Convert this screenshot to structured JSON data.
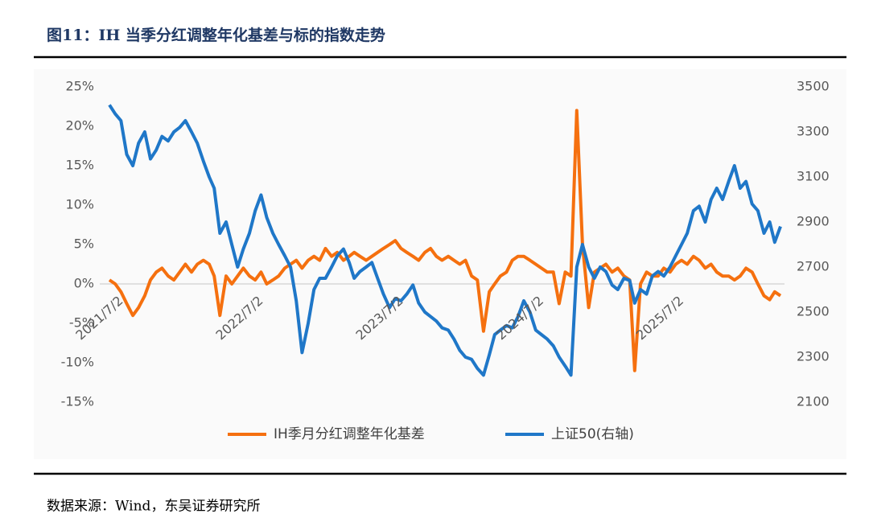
{
  "chart_data": {
    "type": "line",
    "title": "图11：IH 当季分红调整年化基差与标的指数走势",
    "source": "数据来源：Wind，东吴证券研究所",
    "x": [
      "2021/6/1",
      "2021/6/16",
      "2021/7/1",
      "2021/7/16",
      "2021/8/1",
      "2021/8/16",
      "2021/9/1",
      "2021/9/16",
      "2021/10/1",
      "2021/10/16",
      "2021/11/1",
      "2021/11/16",
      "2021/12/1",
      "2021/12/16",
      "2022/1/1",
      "2022/1/16",
      "2022/2/1",
      "2022/2/16",
      "2022/3/1",
      "2022/3/16",
      "2022/4/1",
      "2022/4/16",
      "2022/5/1",
      "2022/5/16",
      "2022/6/1",
      "2022/6/16",
      "2022/7/1",
      "2022/7/16",
      "2022/8/1",
      "2022/8/16",
      "2022/9/1",
      "2022/9/16",
      "2022/10/1",
      "2022/10/16",
      "2022/11/1",
      "2022/11/16",
      "2022/12/1",
      "2022/12/16",
      "2023/1/1",
      "2023/1/16",
      "2023/2/1",
      "2023/2/16",
      "2023/3/1",
      "2023/3/16",
      "2023/4/1",
      "2023/4/16",
      "2023/5/1",
      "2023/5/16",
      "2023/6/1",
      "2023/6/16",
      "2023/7/1",
      "2023/7/16",
      "2023/8/1",
      "2023/8/16",
      "2023/9/1",
      "2023/9/16",
      "2023/10/1",
      "2023/10/16",
      "2023/11/1",
      "2023/11/16",
      "2023/12/1",
      "2023/12/16",
      "2024/1/1",
      "2024/1/16",
      "2024/2/1",
      "2024/2/16",
      "2024/3/1",
      "2024/3/16",
      "2024/4/1",
      "2024/4/16",
      "2024/5/1",
      "2024/5/16",
      "2024/6/1",
      "2024/6/16",
      "2024/7/1",
      "2024/7/16",
      "2024/8/1",
      "2024/8/16",
      "2024/9/1",
      "2024/9/16",
      "2024/10/1",
      "2024/10/16",
      "2024/11/1",
      "2024/11/16",
      "2024/12/1",
      "2024/12/16",
      "2025/1/1",
      "2025/1/16",
      "2025/2/1",
      "2025/2/16",
      "2025/3/1",
      "2025/3/16",
      "2025/4/1",
      "2025/4/16",
      "2025/5/1",
      "2025/5/16",
      "2025/6/1",
      "2025/6/16",
      "2025/7/1",
      "2025/7/16",
      "2025/8/1",
      "2025/8/16",
      "2025/9/1",
      "2025/9/16",
      "2025/10/1",
      "2025/10/16",
      "2025/11/1",
      "2025/11/16",
      "2025/12/1",
      "2025/12/16",
      "2026/1/1",
      "2026/1/16",
      "2026/2/1",
      "2026/2/16",
      "2026/3/1",
      "2026/3/16"
    ],
    "xticks": [
      "2021/7/2",
      "2022/7/2",
      "2023/7/2",
      "2024/7/2",
      "2025/7/2"
    ],
    "series": [
      {
        "name": "IH季月分红调整年化基差",
        "color": "#f5700f",
        "axis": "y",
        "values": [
          0.5,
          0,
          -1,
          -2.5,
          -4,
          -3,
          -1.5,
          0.5,
          1.5,
          2,
          1,
          0.5,
          1.5,
          2.5,
          1.5,
          2.5,
          3,
          2.5,
          1,
          -4,
          1,
          0,
          1,
          2,
          1,
          0.5,
          1.5,
          0,
          0.5,
          1,
          2,
          2.5,
          3,
          2,
          3,
          3.5,
          3,
          4.5,
          3.5,
          4,
          3,
          3.5,
          4,
          3.5,
          3,
          3.5,
          4,
          4.5,
          5,
          5.5,
          4.5,
          4,
          3.5,
          3,
          4,
          4.5,
          3.5,
          3,
          3.5,
          3,
          2.5,
          3,
          1,
          0.5,
          -6,
          -1,
          0,
          1,
          1.5,
          3,
          3.5,
          3.5,
          3,
          2.5,
          2,
          1.5,
          1.5,
          -2.5,
          1.5,
          1,
          22,
          5,
          -3,
          1.5,
          2,
          2.5,
          1.5,
          2,
          1,
          0.5,
          -11,
          0,
          1.5,
          1,
          1,
          2,
          1.5,
          2.5,
          3,
          2.5,
          3.5,
          3,
          2,
          2.5,
          1.5,
          1,
          1,
          0.5,
          1,
          2,
          1.5,
          0,
          -1.5,
          -2,
          -1,
          -1.5
        ]
      },
      {
        "name": "上证50(右轴)",
        "color": "#1f77c8",
        "axis": "y2",
        "values": [
          3420,
          3380,
          3350,
          3200,
          3150,
          3250,
          3300,
          3180,
          3220,
          3280,
          3260,
          3300,
          3320,
          3350,
          3300,
          3250,
          3170,
          3100,
          3050,
          2850,
          2900,
          2800,
          2700,
          2780,
          2850,
          2950,
          3020,
          2920,
          2850,
          2800,
          2750,
          2700,
          2550,
          2320,
          2450,
          2600,
          2650,
          2650,
          2700,
          2750,
          2780,
          2720,
          2650,
          2680,
          2700,
          2720,
          2650,
          2580,
          2520,
          2560,
          2550,
          2580,
          2620,
          2540,
          2500,
          2480,
          2460,
          2430,
          2420,
          2380,
          2330,
          2300,
          2290,
          2250,
          2220,
          2310,
          2400,
          2420,
          2440,
          2430,
          2480,
          2550,
          2500,
          2420,
          2400,
          2380,
          2350,
          2300,
          2260,
          2220,
          2700,
          2800,
          2700,
          2650,
          2700,
          2680,
          2620,
          2600,
          2650,
          2640,
          2540,
          2600,
          2580,
          2660,
          2680,
          2660,
          2700,
          2750,
          2800,
          2850,
          2950,
          2970,
          2900,
          3000,
          3050,
          3000,
          3080,
          3150,
          3050,
          3080,
          2980,
          2950,
          2850,
          2900,
          2810,
          2880
        ]
      }
    ],
    "ylim": [
      -15,
      25
    ],
    "yticks": [
      {
        "value": 25,
        "label": "25%"
      },
      {
        "value": 20,
        "label": "20%"
      },
      {
        "value": 15,
        "label": "15%"
      },
      {
        "value": 10,
        "label": "10%"
      },
      {
        "value": 5,
        "label": "5%"
      },
      {
        "value": 0,
        "label": "0%"
      },
      {
        "value": -5,
        "label": "-5%"
      },
      {
        "value": -10,
        "label": "-10%"
      },
      {
        "value": -15,
        "label": "-15%"
      }
    ],
    "y2lim": [
      2100,
      3500
    ],
    "y2ticks": [
      3500,
      3300,
      3100,
      2900,
      2700,
      2500,
      2300,
      2100
    ]
  }
}
